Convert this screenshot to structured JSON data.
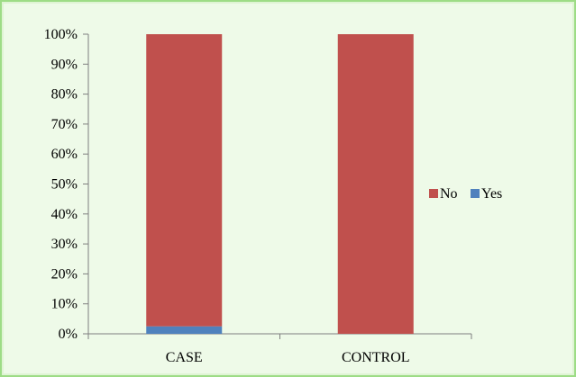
{
  "chart_data": {
    "type": "bar",
    "stacked": true,
    "percent_stacked": true,
    "categories": [
      "CASE",
      "CONTROL"
    ],
    "series": [
      {
        "name": "Yes",
        "values": [
          2.5,
          0
        ],
        "color": "#4f81bd"
      },
      {
        "name": "No",
        "values": [
          97.5,
          100
        ],
        "color": "#c0504d"
      }
    ],
    "ylim": [
      0,
      100
    ],
    "yticks": [
      0,
      10,
      20,
      30,
      40,
      50,
      60,
      70,
      80,
      90,
      100
    ],
    "ytick_labels": [
      "0%",
      "10%",
      "20%",
      "30%",
      "40%",
      "50%",
      "60%",
      "70%",
      "80%",
      "90%",
      "100%"
    ],
    "grid": false,
    "legend_position": "right",
    "legend_order": [
      "No",
      "Yes"
    ],
    "background_color": "#eefae8",
    "border_color": "#9ddc86"
  }
}
